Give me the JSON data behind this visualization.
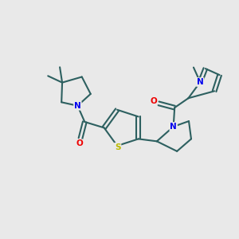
{
  "bg_color": "#e9e9e9",
  "bond_color": "#2d6060",
  "atom_colors": {
    "N": "#0000ee",
    "O": "#ee0000",
    "S": "#bbbb00",
    "C": "#2d6060"
  },
  "figsize": [
    3.0,
    3.0
  ],
  "dpi": 100,
  "xlim": [
    0,
    10
  ],
  "ylim": [
    0,
    10
  ]
}
